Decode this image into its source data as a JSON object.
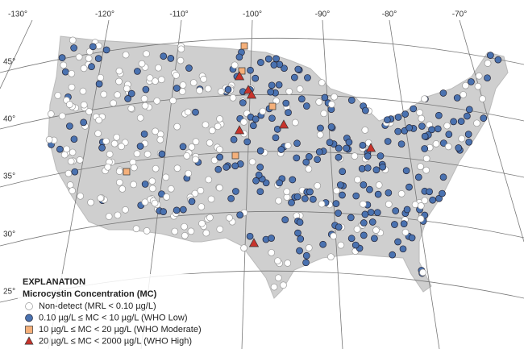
{
  "map": {
    "longitude_labels": [
      "-130°",
      "-120°",
      "-110°",
      "-100°",
      "-90°",
      "-80°",
      "-70°"
    ],
    "latitude_labels": [
      "45°",
      "40°",
      "35°",
      "30°",
      "25°"
    ]
  },
  "legend": {
    "title": "EXPLANATION",
    "subtitle": "Microcystin Concentration (MC)",
    "items": [
      {
        "label": "Non-detect (MRL < 0.10 µg/L)",
        "color": "#ffffff",
        "shape": "circle"
      },
      {
        "label": "0.10 µg/L ≤ MC < 10 µg/L (WHO Low)",
        "color": "#4a72b0",
        "shape": "circle"
      },
      {
        "label": "10 µg/L ≤ MC < 20 µg/L (WHO Moderate)",
        "color": "#f5b07a",
        "shape": "square"
      },
      {
        "label": "20 µg/L ≤ MC < 2000 µg/L (WHO High)",
        "color": "#c8332b",
        "shape": "triangle"
      }
    ]
  }
}
